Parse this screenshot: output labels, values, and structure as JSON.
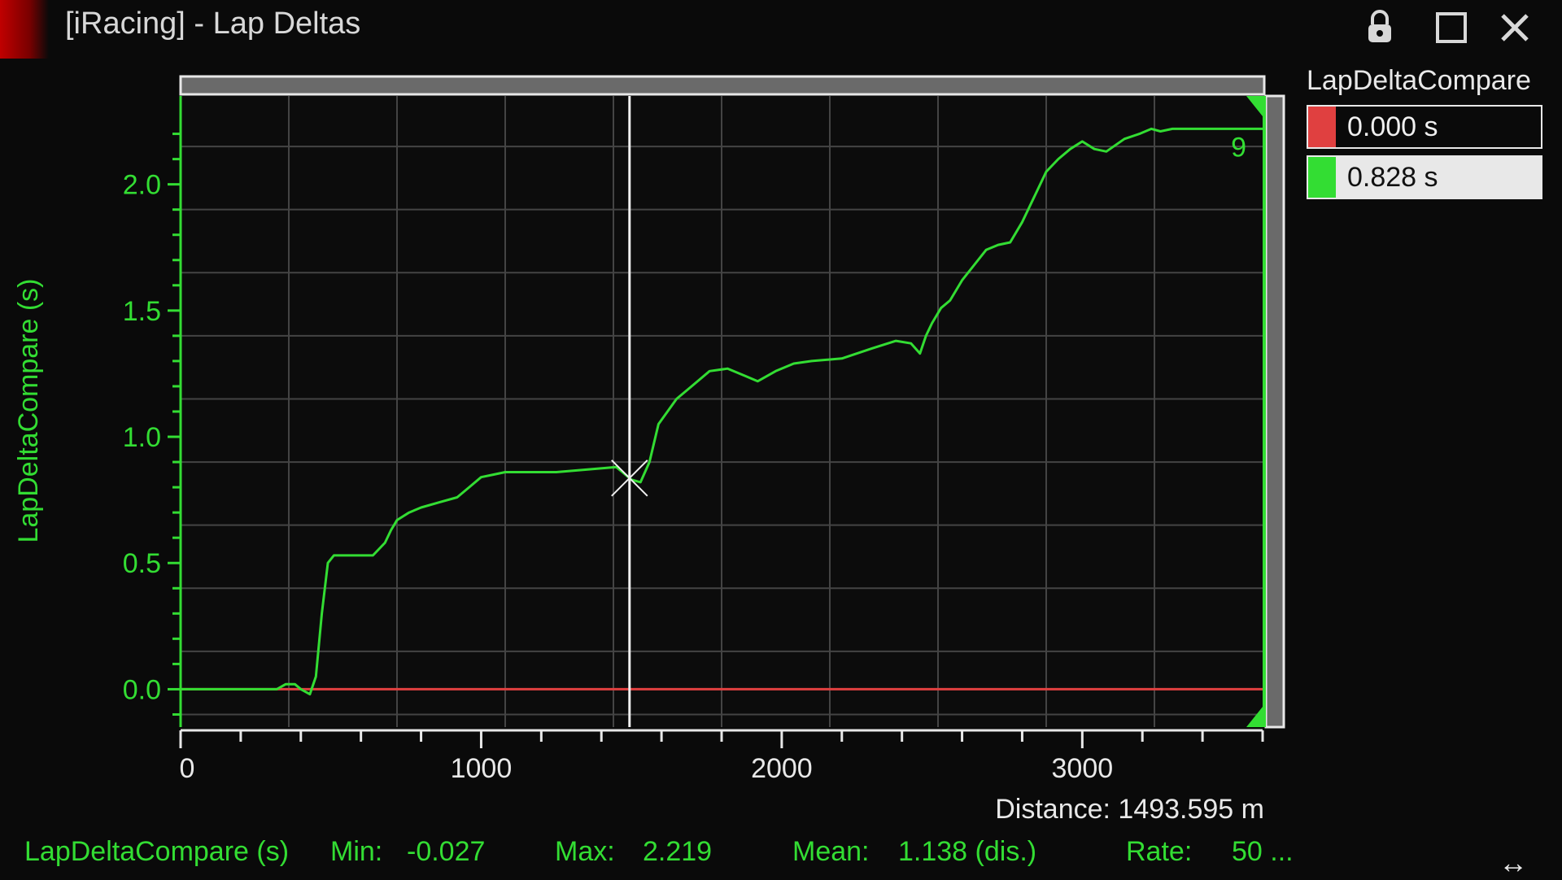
{
  "window": {
    "title": "[iRacing] - Lap Deltas",
    "icons": [
      "lock-icon",
      "maximize-icon",
      "close-icon"
    ]
  },
  "colors": {
    "accent": "#c00000",
    "grid": "#444444",
    "axis": "#33dd33",
    "series_green": "#33dd33",
    "series_red": "#e04040"
  },
  "legend": {
    "title": "LapDeltaCompare",
    "items": [
      {
        "value": "0.000 s",
        "color": "#e04040"
      },
      {
        "value": "0.828 s",
        "color": "#33dd33"
      }
    ]
  },
  "readout": {
    "distance": "Distance: 1493.595 m"
  },
  "stats": {
    "channel": "LapDeltaCompare (s)",
    "min_label": "Min:",
    "min_value": "-0.027",
    "max_label": "Max:",
    "max_value": "2.219",
    "mean_label": "Mean:",
    "mean_value": "1.138 (dis.)",
    "rate_label": "Rate:",
    "rate_value": "50 ..."
  },
  "chart_data": {
    "type": "line",
    "ylabel": "LapDeltaCompare (s)",
    "xlim": [
      0,
      3600
    ],
    "ylim": [
      -0.15,
      2.35
    ],
    "xticks": [
      0,
      1000,
      2000,
      3000
    ],
    "xtick_labels": [
      "0",
      "1000",
      "2000",
      "3000"
    ],
    "yticks": [
      0.0,
      0.5,
      1.0,
      1.5,
      2.0
    ],
    "ytick_labels": [
      "0.0",
      "0.5",
      "1.0",
      "1.5",
      "2.0"
    ],
    "grid": true,
    "cursor_x": 1493.595,
    "end_marker": "9",
    "series": [
      {
        "color": "#33dd33",
        "x": [
          0,
          320,
          350,
          380,
          400,
          430,
          450,
          470,
          490,
          510,
          530,
          550,
          580,
          640,
          680,
          700,
          720,
          760,
          800,
          860,
          920,
          960,
          1000,
          1040,
          1080,
          1150,
          1250,
          1350,
          1450,
          1500,
          1530,
          1560,
          1590,
          1620,
          1650,
          1700,
          1760,
          1820,
          1880,
          1920,
          1980,
          2040,
          2100,
          2200,
          2300,
          2380,
          2430,
          2460,
          2480,
          2500,
          2530,
          2560,
          2600,
          2640,
          2680,
          2720,
          2760,
          2800,
          2840,
          2880,
          2920,
          2960,
          3000,
          3040,
          3080,
          3140,
          3190,
          3230,
          3260,
          3300,
          3340,
          3400,
          3500,
          3600
        ],
        "y": [
          0.0,
          0.0,
          0.02,
          0.02,
          0.0,
          -0.02,
          0.05,
          0.3,
          0.5,
          0.53,
          0.53,
          0.53,
          0.53,
          0.53,
          0.58,
          0.63,
          0.67,
          0.7,
          0.72,
          0.74,
          0.76,
          0.8,
          0.84,
          0.85,
          0.86,
          0.86,
          0.86,
          0.87,
          0.88,
          0.83,
          0.82,
          0.9,
          1.05,
          1.1,
          1.15,
          1.2,
          1.26,
          1.27,
          1.24,
          1.22,
          1.26,
          1.29,
          1.3,
          1.31,
          1.35,
          1.38,
          1.37,
          1.33,
          1.4,
          1.45,
          1.51,
          1.54,
          1.62,
          1.68,
          1.74,
          1.76,
          1.77,
          1.85,
          1.95,
          2.05,
          2.1,
          2.14,
          2.17,
          2.14,
          2.13,
          2.18,
          2.2,
          2.22,
          2.21,
          2.22,
          2.22,
          2.22,
          2.22,
          2.22
        ]
      },
      {
        "color": "#e04040",
        "x": [
          0,
          3600
        ],
        "y": [
          0.0,
          0.0
        ]
      }
    ]
  }
}
